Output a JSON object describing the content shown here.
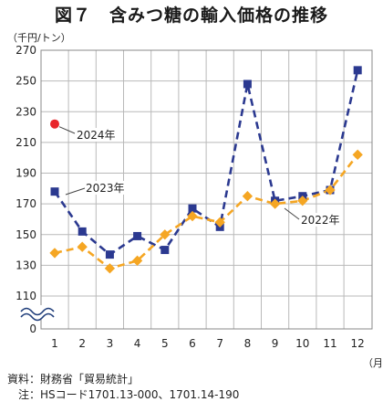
{
  "title": "図７　含みつ糖の輸入価格の推移",
  "footer": {
    "source": "資料：財務省「貿易統計」",
    "note": "　注：HSコード1701.13-000、1701.14-190"
  },
  "chart_data": {
    "type": "line",
    "ylabel": "（千円/トン）",
    "xlabel": "（月）",
    "y_ticks": [
      270,
      250,
      230,
      210,
      190,
      170,
      150,
      130,
      110
    ],
    "y_zero_label": "0",
    "y_axis_break": true,
    "ylim": [
      110,
      270
    ],
    "categories": [
      "1",
      "2",
      "3",
      "4",
      "5",
      "6",
      "7",
      "8",
      "9",
      "10",
      "11",
      "12"
    ],
    "grid": true,
    "series": [
      {
        "name": "2024年",
        "color": "#e8262b",
        "marker": "circle",
        "values": [
          222,
          null,
          null,
          null,
          null,
          null,
          null,
          null,
          null,
          null,
          null,
          null
        ]
      },
      {
        "name": "2023年",
        "color": "#2b3990",
        "marker": "square",
        "values": [
          178,
          152,
          137,
          149,
          140,
          167,
          155,
          248,
          172,
          175,
          179,
          257
        ]
      },
      {
        "name": "2022年",
        "color": "#f5a623",
        "marker": "diamond",
        "values": [
          138,
          142,
          128,
          133,
          150,
          162,
          158,
          175,
          170,
          172,
          179,
          202
        ]
      }
    ]
  }
}
